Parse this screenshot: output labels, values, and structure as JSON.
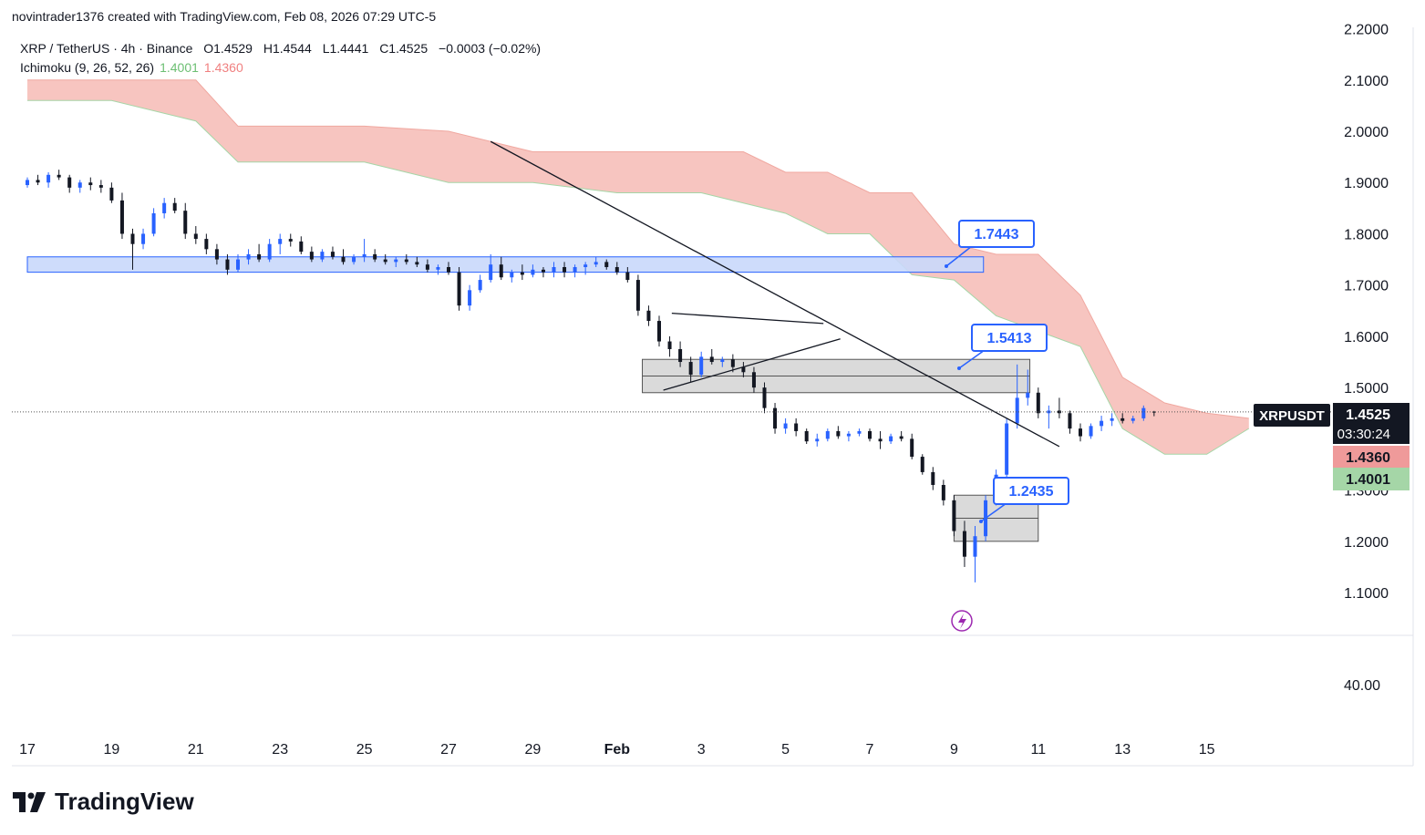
{
  "header": {
    "attribution": "novintrader1376 created with TradingView.com, Feb 08, 2026 07:29 UTC-5"
  },
  "legend": {
    "symbol_line": "XRP / TetherUS · 4h · Binance",
    "open": "O1.4529",
    "high": "H1.4544",
    "low": "L1.4441",
    "close": "C1.4525",
    "change": "−0.0003 (−0.02%)",
    "indicator_name": "Ichimoku (9, 26, 52, 26)",
    "indicator_v1": "1.4001",
    "indicator_v2": "1.4360"
  },
  "price_axis": {
    "labels": [
      "2.2000",
      "2.1000",
      "2.0000",
      "1.9000",
      "1.8000",
      "1.7000",
      "1.6000",
      "1.5000",
      "1.3000",
      "1.2000",
      "1.1000"
    ],
    "label_values": [
      2.2,
      2.1,
      2.0,
      1.9,
      1.8,
      1.7,
      1.6,
      1.5,
      1.3,
      1.2,
      1.1
    ],
    "current_symbol": "XRPUSDT",
    "current_price": "1.4525",
    "countdown": "03:30:24",
    "span_b_label": "1.4360",
    "span_a_label": "1.4001",
    "oscillator_label": "40.00"
  },
  "time_axis": {
    "labels": [
      "17",
      "19",
      "21",
      "23",
      "25",
      "27",
      "29",
      "Feb",
      "3",
      "5",
      "7",
      "9",
      "11",
      "13",
      "15"
    ]
  },
  "colors": {
    "up": "#2962ff",
    "down": "#131722",
    "cloud": "#f7c5c0",
    "zone_blue": "#c9d8fb",
    "zone_gray": "#d4d4d4",
    "accent": "#2962ff"
  },
  "annotations": [
    {
      "label": "1.7443",
      "value": 1.7443
    },
    {
      "label": "1.5413",
      "value": 1.5413
    },
    {
      "label": "1.2435",
      "value": 1.2435
    }
  ],
  "brand": "TradingView",
  "chart_data": {
    "type": "candlestick",
    "title": "XRP / TetherUS · 4h · Binance",
    "ylim": [
      1.0,
      2.2
    ],
    "x_unit": "days (0 = Jan 17)",
    "xlim": [
      0,
      29
    ],
    "candles": [
      [
        0.0,
        1.895,
        1.91,
        1.89,
        1.905
      ],
      [
        0.25,
        1.905,
        1.915,
        1.895,
        1.9
      ],
      [
        0.5,
        1.9,
        1.92,
        1.89,
        1.915
      ],
      [
        0.75,
        1.915,
        1.925,
        1.905,
        1.91
      ],
      [
        1.0,
        1.91,
        1.915,
        1.88,
        1.89
      ],
      [
        1.25,
        1.89,
        1.905,
        1.88,
        1.9
      ],
      [
        1.5,
        1.9,
        1.91,
        1.885,
        1.895
      ],
      [
        1.75,
        1.895,
        1.905,
        1.88,
        1.89
      ],
      [
        2.0,
        1.89,
        1.9,
        1.86,
        1.865
      ],
      [
        2.25,
        1.865,
        1.88,
        1.79,
        1.8
      ],
      [
        2.5,
        1.8,
        1.81,
        1.73,
        1.78
      ],
      [
        2.75,
        1.78,
        1.81,
        1.77,
        1.8
      ],
      [
        3.0,
        1.8,
        1.85,
        1.795,
        1.84
      ],
      [
        3.25,
        1.84,
        1.87,
        1.83,
        1.86
      ],
      [
        3.5,
        1.86,
        1.87,
        1.84,
        1.845
      ],
      [
        3.75,
        1.845,
        1.86,
        1.79,
        1.8
      ],
      [
        4.0,
        1.8,
        1.815,
        1.78,
        1.79
      ],
      [
        4.25,
        1.79,
        1.8,
        1.76,
        1.77
      ],
      [
        4.5,
        1.77,
        1.78,
        1.74,
        1.75
      ],
      [
        4.75,
        1.75,
        1.76,
        1.72,
        1.73
      ],
      [
        5.0,
        1.73,
        1.76,
        1.725,
        1.75
      ],
      [
        5.25,
        1.75,
        1.77,
        1.74,
        1.76
      ],
      [
        5.5,
        1.76,
        1.78,
        1.745,
        1.75
      ],
      [
        5.75,
        1.75,
        1.79,
        1.745,
        1.78
      ],
      [
        6.0,
        1.78,
        1.8,
        1.76,
        1.79
      ],
      [
        6.25,
        1.79,
        1.8,
        1.775,
        1.785
      ],
      [
        6.5,
        1.785,
        1.795,
        1.76,
        1.765
      ],
      [
        6.75,
        1.765,
        1.775,
        1.745,
        1.75
      ],
      [
        7.0,
        1.75,
        1.77,
        1.745,
        1.765
      ],
      [
        7.25,
        1.765,
        1.775,
        1.75,
        1.755
      ],
      [
        7.5,
        1.755,
        1.77,
        1.74,
        1.745
      ],
      [
        7.75,
        1.745,
        1.76,
        1.74,
        1.755
      ],
      [
        8.0,
        1.755,
        1.79,
        1.745,
        1.76
      ],
      [
        8.25,
        1.76,
        1.77,
        1.745,
        1.75
      ],
      [
        8.5,
        1.75,
        1.76,
        1.74,
        1.745
      ],
      [
        8.75,
        1.745,
        1.755,
        1.735,
        1.75
      ],
      [
        9.0,
        1.75,
        1.76,
        1.74,
        1.745
      ],
      [
        9.25,
        1.745,
        1.755,
        1.735,
        1.74
      ],
      [
        9.5,
        1.74,
        1.75,
        1.725,
        1.73
      ],
      [
        9.75,
        1.73,
        1.74,
        1.72,
        1.735
      ],
      [
        10.0,
        1.735,
        1.745,
        1.72,
        1.725
      ],
      [
        10.25,
        1.725,
        1.735,
        1.65,
        1.66
      ],
      [
        10.5,
        1.66,
        1.7,
        1.65,
        1.69
      ],
      [
        10.75,
        1.69,
        1.72,
        1.685,
        1.71
      ],
      [
        11.0,
        1.71,
        1.76,
        1.705,
        1.74
      ],
      [
        11.25,
        1.74,
        1.755,
        1.71,
        1.715
      ],
      [
        11.5,
        1.715,
        1.73,
        1.705,
        1.725
      ],
      [
        11.75,
        1.725,
        1.74,
        1.71,
        1.72
      ],
      [
        12.0,
        1.72,
        1.74,
        1.715,
        1.73
      ],
      [
        12.25,
        1.73,
        1.735,
        1.715,
        1.725
      ],
      [
        12.5,
        1.725,
        1.745,
        1.715,
        1.735
      ],
      [
        12.75,
        1.735,
        1.745,
        1.715,
        1.725
      ],
      [
        13.0,
        1.725,
        1.74,
        1.715,
        1.735
      ],
      [
        13.25,
        1.735,
        1.745,
        1.72,
        1.74
      ],
      [
        13.5,
        1.74,
        1.755,
        1.735,
        1.745
      ],
      [
        13.75,
        1.745,
        1.75,
        1.73,
        1.735
      ],
      [
        14.0,
        1.735,
        1.745,
        1.72,
        1.725
      ],
      [
        14.25,
        1.725,
        1.735,
        1.705,
        1.71
      ],
      [
        14.5,
        1.71,
        1.72,
        1.64,
        1.65
      ],
      [
        14.75,
        1.65,
        1.66,
        1.62,
        1.63
      ],
      [
        15.0,
        1.63,
        1.64,
        1.58,
        1.59
      ],
      [
        15.25,
        1.59,
        1.6,
        1.56,
        1.575
      ],
      [
        15.5,
        1.575,
        1.59,
        1.54,
        1.55
      ],
      [
        15.75,
        1.55,
        1.56,
        1.51,
        1.525
      ],
      [
        16.0,
        1.525,
        1.57,
        1.52,
        1.56
      ],
      [
        16.25,
        1.56,
        1.575,
        1.545,
        1.55
      ],
      [
        16.5,
        1.55,
        1.56,
        1.54,
        1.555
      ],
      [
        16.75,
        1.555,
        1.565,
        1.53,
        1.54
      ],
      [
        17.0,
        1.54,
        1.55,
        1.52,
        1.53
      ],
      [
        17.25,
        1.53,
        1.54,
        1.49,
        1.5
      ],
      [
        17.5,
        1.5,
        1.51,
        1.45,
        1.46
      ],
      [
        17.75,
        1.46,
        1.47,
        1.41,
        1.42
      ],
      [
        18.0,
        1.42,
        1.44,
        1.41,
        1.43
      ],
      [
        18.25,
        1.43,
        1.44,
        1.405,
        1.415
      ],
      [
        18.5,
        1.415,
        1.42,
        1.39,
        1.395
      ],
      [
        18.75,
        1.395,
        1.41,
        1.385,
        1.4
      ],
      [
        19.0,
        1.4,
        1.42,
        1.395,
        1.415
      ],
      [
        19.25,
        1.415,
        1.425,
        1.4,
        1.405
      ],
      [
        19.5,
        1.405,
        1.415,
        1.395,
        1.41
      ],
      [
        19.75,
        1.41,
        1.42,
        1.405,
        1.415
      ],
      [
        20.0,
        1.415,
        1.42,
        1.395,
        1.4
      ],
      [
        20.25,
        1.4,
        1.415,
        1.38,
        1.395
      ],
      [
        20.5,
        1.395,
        1.41,
        1.39,
        1.405
      ],
      [
        20.75,
        1.405,
        1.415,
        1.395,
        1.4
      ],
      [
        21.0,
        1.4,
        1.41,
        1.36,
        1.365
      ],
      [
        21.25,
        1.365,
        1.37,
        1.33,
        1.335
      ],
      [
        21.5,
        1.335,
        1.345,
        1.3,
        1.31
      ],
      [
        21.75,
        1.31,
        1.32,
        1.27,
        1.28
      ],
      [
        22.0,
        1.28,
        1.29,
        1.21,
        1.22
      ],
      [
        22.25,
        1.22,
        1.24,
        1.15,
        1.17
      ],
      [
        22.5,
        1.17,
        1.23,
        1.12,
        1.21
      ],
      [
        22.75,
        1.21,
        1.29,
        1.2,
        1.28
      ],
      [
        23.0,
        1.28,
        1.34,
        1.27,
        1.33
      ],
      [
        23.25,
        1.33,
        1.44,
        1.32,
        1.43
      ],
      [
        23.5,
        1.43,
        1.545,
        1.42,
        1.48
      ],
      [
        23.75,
        1.48,
        1.535,
        1.465,
        1.49
      ],
      [
        24.0,
        1.49,
        1.5,
        1.44,
        1.45
      ],
      [
        24.25,
        1.45,
        1.465,
        1.42,
        1.455
      ],
      [
        24.5,
        1.455,
        1.48,
        1.44,
        1.45
      ],
      [
        24.75,
        1.45,
        1.455,
        1.41,
        1.42
      ],
      [
        25.0,
        1.42,
        1.43,
        1.395,
        1.405
      ],
      [
        25.25,
        1.405,
        1.43,
        1.4,
        1.425
      ],
      [
        25.5,
        1.425,
        1.445,
        1.415,
        1.435
      ],
      [
        25.75,
        1.435,
        1.45,
        1.425,
        1.44
      ],
      [
        26.0,
        1.44,
        1.45,
        1.43,
        1.435
      ],
      [
        26.25,
        1.435,
        1.445,
        1.43,
        1.44
      ],
      [
        26.5,
        1.44,
        1.465,
        1.435,
        1.46
      ],
      [
        26.75,
        1.4529,
        1.4544,
        1.4441,
        1.4525
      ]
    ],
    "ichimoku_cloud": {
      "x": [
        0,
        2,
        4,
        5,
        6,
        8,
        10,
        12,
        14,
        16,
        17,
        18,
        19,
        20,
        21,
        22,
        23,
        24,
        25,
        26,
        27,
        28,
        29
      ],
      "top": [
        2.1,
        2.1,
        2.1,
        2.01,
        2.01,
        2.01,
        2.0,
        1.96,
        1.96,
        1.96,
        1.96,
        1.92,
        1.92,
        1.88,
        1.88,
        1.78,
        1.76,
        1.76,
        1.68,
        1.52,
        1.47,
        1.45,
        1.44
      ],
      "bottom": [
        2.06,
        2.06,
        2.02,
        1.94,
        1.94,
        1.94,
        1.9,
        1.9,
        1.88,
        1.88,
        1.86,
        1.84,
        1.8,
        1.8,
        1.72,
        1.71,
        1.64,
        1.61,
        1.58,
        1.42,
        1.37,
        1.37,
        1.42
      ]
    },
    "zones": [
      {
        "name": "resistance-zone-blue",
        "y0": 1.725,
        "y1": 1.755,
        "x0": 0,
        "x1": 22.7
      },
      {
        "name": "supply-zone-gray",
        "y0": 1.49,
        "y1": 1.555,
        "x0": 14.6,
        "x1": 23.8
      },
      {
        "name": "demand-zone-gray",
        "y0": 1.2,
        "y1": 1.29,
        "x0": 22.0,
        "x1": 24.0
      }
    ],
    "trendlines": [
      {
        "name": "descending-trendline",
        "x0": 11.0,
        "y0": 1.98,
        "x1": 24.5,
        "y1": 1.385
      },
      {
        "name": "wedge-upper-line",
        "x0": 15.3,
        "y0": 1.645,
        "x1": 18.9,
        "y1": 1.625
      },
      {
        "name": "wedge-lower-line",
        "x0": 15.1,
        "y0": 1.495,
        "x1": 19.3,
        "y1": 1.595
      }
    ]
  }
}
